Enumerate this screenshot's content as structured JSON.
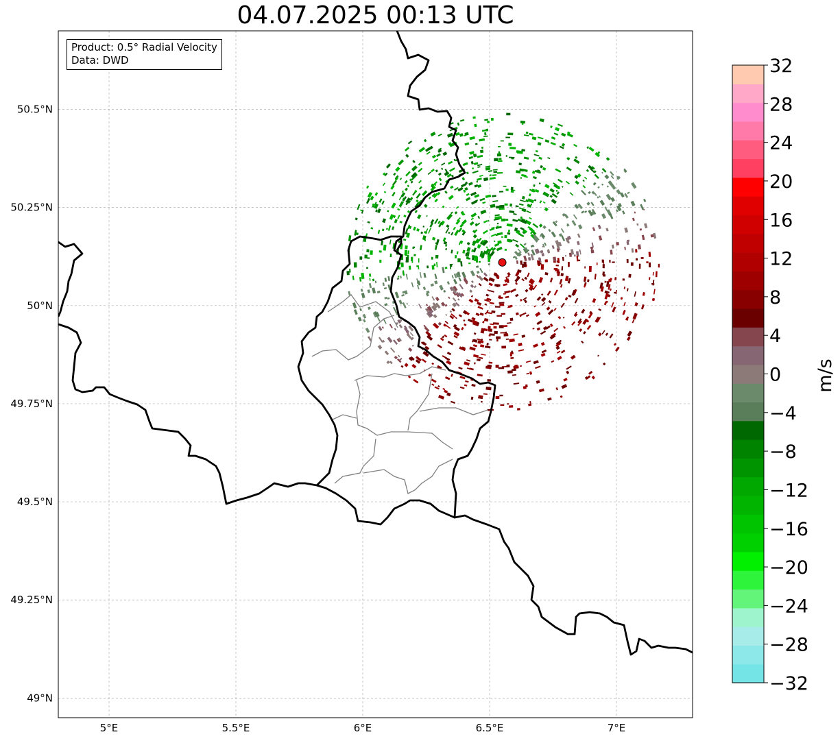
{
  "title": "04.07.2025 00:13 UTC",
  "info": {
    "product": "Product: 0.5° Radial Velocity",
    "source": "Data: DWD"
  },
  "map": {
    "lon_range": [
      4.8,
      7.3
    ],
    "lat_range": [
      48.95,
      50.7
    ],
    "lat_ticks": [
      {
        "value": 50.5,
        "label": "50.5°N"
      },
      {
        "value": 50.25,
        "label": "50.25°N"
      },
      {
        "value": 50.0,
        "label": "50°N"
      },
      {
        "value": 49.75,
        "label": "49.75°N"
      },
      {
        "value": 49.5,
        "label": "49.5°N"
      },
      {
        "value": 49.25,
        "label": "49.25°N"
      },
      {
        "value": 49.0,
        "label": "49°N"
      }
    ],
    "lon_ticks": [
      {
        "value": 5.0,
        "label": "5°E"
      },
      {
        "value": 5.5,
        "label": "5.5°E"
      },
      {
        "value": 6.0,
        "label": "6°E"
      },
      {
        "value": 6.5,
        "label": "6.5°E"
      },
      {
        "value": 7.0,
        "label": "7°E"
      }
    ],
    "grid": true,
    "radar_site": {
      "lon": 6.55,
      "lat": 50.11,
      "color": "#e81010"
    }
  },
  "colorbar": {
    "label": "m/s",
    "min": -32,
    "max": 32,
    "ticks": [
      "32",
      "28",
      "24",
      "20",
      "16",
      "12",
      "8",
      "4",
      "0",
      "−4",
      "−8",
      "−12",
      "−16",
      "−20",
      "−24",
      "−28",
      "−32"
    ],
    "colors_bottom_to_top": [
      "#74e4e6",
      "#8de8ea",
      "#a8ece9",
      "#9ef4cc",
      "#63f57a",
      "#2ff43c",
      "#00f000",
      "#00d000",
      "#00c400",
      "#00b400",
      "#00a800",
      "#009400",
      "#008400",
      "#006800",
      "#5a7d5a",
      "#6b8a6b",
      "#8c7a78",
      "#866672",
      "#86464e",
      "#6a0000",
      "#880000",
      "#9e0000",
      "#b00000",
      "#c00000",
      "#d00000",
      "#e00000",
      "#ff0000",
      "#ff4060",
      "#ff5c80",
      "#ff7aa8",
      "#ff8ccc",
      "#ffa8c8",
      "#ffcab0"
    ]
  }
}
